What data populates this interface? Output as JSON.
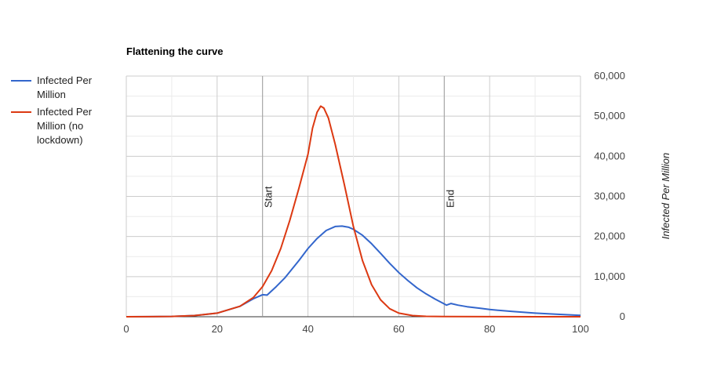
{
  "chart_data": {
    "type": "line",
    "title": "Flattening the curve",
    "xlabel": "",
    "ylabel": "Infected Per Million",
    "xlim": [
      0,
      100
    ],
    "ylim": [
      0,
      60000
    ],
    "x_ticks": [
      "0",
      "20",
      "40",
      "60",
      "80",
      "100"
    ],
    "y_ticks": [
      "0",
      "10,000",
      "20,000",
      "30,000",
      "40,000",
      "50,000",
      "60,000"
    ],
    "y_axis_side": "right",
    "grid": true,
    "legend_position": "left",
    "annotations": [
      {
        "x": 30,
        "label": "Start"
      },
      {
        "x": 70,
        "label": "End"
      }
    ],
    "series": [
      {
        "name": "Infected Per Million",
        "color": "#3366cc",
        "points": [
          [
            0,
            0
          ],
          [
            5,
            20
          ],
          [
            10,
            80
          ],
          [
            15,
            300
          ],
          [
            20,
            900
          ],
          [
            25,
            2600
          ],
          [
            28,
            4500
          ],
          [
            30,
            5500
          ],
          [
            31,
            5400
          ],
          [
            33,
            7500
          ],
          [
            35,
            9800
          ],
          [
            38,
            14000
          ],
          [
            40,
            17000
          ],
          [
            42,
            19500
          ],
          [
            44,
            21500
          ],
          [
            46,
            22500
          ],
          [
            47.5,
            22600
          ],
          [
            49,
            22300
          ],
          [
            50,
            21800
          ],
          [
            52,
            20300
          ],
          [
            54,
            18200
          ],
          [
            56,
            15800
          ],
          [
            58,
            13300
          ],
          [
            60,
            11000
          ],
          [
            62,
            9000
          ],
          [
            64,
            7200
          ],
          [
            66,
            5700
          ],
          [
            68,
            4400
          ],
          [
            70,
            3200
          ],
          [
            70.5,
            2900
          ],
          [
            71.5,
            3300
          ],
          [
            73,
            2900
          ],
          [
            75,
            2500
          ],
          [
            78,
            2100
          ],
          [
            80,
            1800
          ],
          [
            85,
            1300
          ],
          [
            90,
            900
          ],
          [
            95,
            600
          ],
          [
            100,
            350
          ]
        ]
      },
      {
        "name": "Infected Per Million (no lockdown)",
        "color": "#dc3912",
        "points": [
          [
            0,
            0
          ],
          [
            5,
            20
          ],
          [
            10,
            80
          ],
          [
            15,
            300
          ],
          [
            20,
            900
          ],
          [
            25,
            2600
          ],
          [
            28,
            4800
          ],
          [
            30,
            7500
          ],
          [
            32,
            11500
          ],
          [
            34,
            17000
          ],
          [
            36,
            24000
          ],
          [
            38,
            32000
          ],
          [
            40,
            40500
          ],
          [
            41,
            47000
          ],
          [
            42,
            51000
          ],
          [
            42.8,
            52500
          ],
          [
            43.5,
            52000
          ],
          [
            44.5,
            49500
          ],
          [
            46,
            43000
          ],
          [
            48,
            33000
          ],
          [
            50,
            22500
          ],
          [
            52,
            14000
          ],
          [
            54,
            8000
          ],
          [
            56,
            4200
          ],
          [
            58,
            2000
          ],
          [
            60,
            900
          ],
          [
            63,
            300
          ],
          [
            66,
            100
          ],
          [
            70,
            30
          ],
          [
            80,
            10
          ],
          [
            90,
            5
          ],
          [
            100,
            5
          ]
        ]
      }
    ]
  }
}
